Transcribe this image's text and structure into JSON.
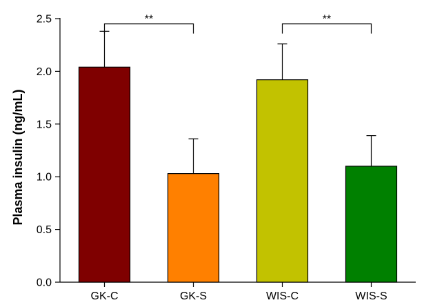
{
  "chart_data": {
    "type": "bar",
    "title": "",
    "xlabel": "",
    "ylabel": "Plasma insulin (ng/mL)",
    "ylim": [
      0,
      2.5
    ],
    "yticks": [
      0.0,
      0.5,
      1.0,
      1.5,
      2.0,
      2.5
    ],
    "ytick_labels": [
      "0.0",
      "0.5",
      "1.0",
      "1.5",
      "2.0",
      "2.5"
    ],
    "categories": [
      "GK-C",
      "GK-S",
      "WIS-C",
      "WIS-S"
    ],
    "values": [
      2.04,
      1.03,
      1.92,
      1.1
    ],
    "errors": [
      0.34,
      0.33,
      0.34,
      0.29
    ],
    "colors": [
      "#7f0000",
      "#ff8000",
      "#c2c200",
      "#008000"
    ],
    "grid": false,
    "legend": "none",
    "significance": [
      {
        "from": 0,
        "to": 1,
        "label": "**",
        "y": 2.45
      },
      {
        "from": 2,
        "to": 3,
        "label": "**",
        "y": 2.45
      }
    ]
  }
}
